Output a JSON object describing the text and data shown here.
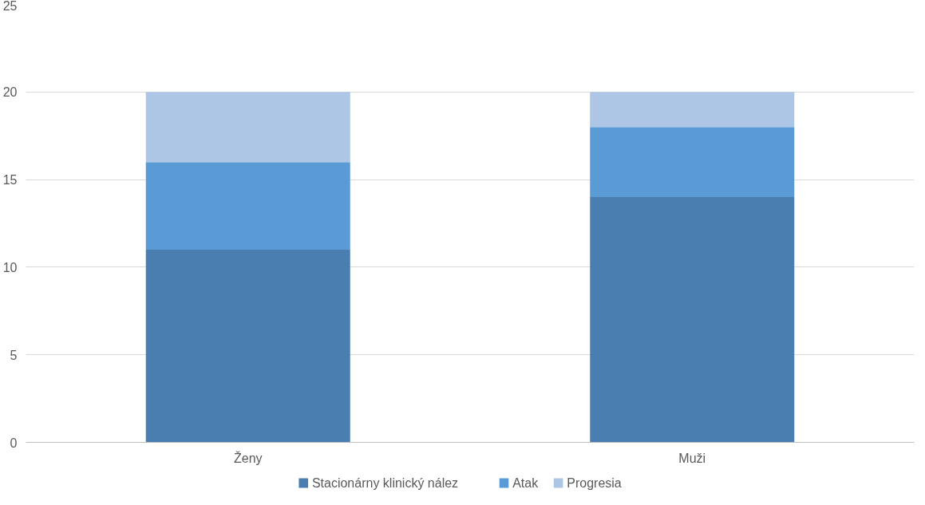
{
  "chart_data": {
    "type": "bar",
    "stacked": true,
    "categories": [
      "Ženy",
      "Muži"
    ],
    "series": [
      {
        "name": "Stacionárny klinický nález",
        "color": "#4a7eb0",
        "values": [
          11,
          14
        ]
      },
      {
        "name": "Atak",
        "color": "#5b9bd5",
        "values": [
          5,
          4
        ]
      },
      {
        "name": "Progresia",
        "color": "#adc6e5",
        "values": [
          4,
          2
        ]
      }
    ],
    "ylim": [
      0,
      25
    ],
    "yticks": [
      0,
      5,
      10,
      15,
      20,
      25
    ],
    "grid": "y",
    "legend": "bottom"
  }
}
